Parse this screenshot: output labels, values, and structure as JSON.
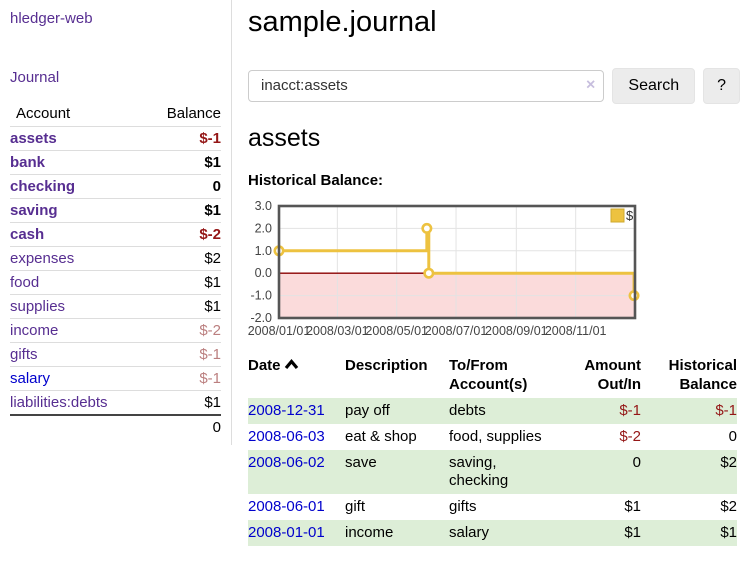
{
  "colors": {
    "accent_purple": "#572e91",
    "link_blue": "#0000cc",
    "negative_red": "#941616",
    "negative_muted": "#bb7f7f",
    "row_green": "#ddeed7",
    "series_yellow": "#edc240",
    "below_zero_pink": "#fbdbdb",
    "zero_line_red": "#8b0000"
  },
  "sidebar": {
    "brand": "hledger-web",
    "nav_journal": "Journal",
    "accounts_table": {
      "header": {
        "account": "Account",
        "balance": "Balance"
      },
      "rows": [
        {
          "name": "assets",
          "level": 1,
          "bold": true,
          "balance": "$-1",
          "balance_style": "negative"
        },
        {
          "name": "bank",
          "level": 2,
          "bold": true,
          "balance": "$1",
          "balance_style": "normal"
        },
        {
          "name": "checking",
          "level": 3,
          "bold": true,
          "balance": "0",
          "balance_style": "normal"
        },
        {
          "name": "saving",
          "level": 3,
          "bold": true,
          "balance": "$1",
          "balance_style": "normal"
        },
        {
          "name": "cash",
          "level": 2,
          "bold": true,
          "balance": "$-2",
          "balance_style": "negative"
        },
        {
          "name": "expenses",
          "level": 1,
          "bold": false,
          "balance": "$2",
          "balance_style": "normal"
        },
        {
          "name": "food",
          "level": 2,
          "bold": false,
          "balance": "$1",
          "balance_style": "normal"
        },
        {
          "name": "supplies",
          "level": 2,
          "bold": false,
          "balance": "$1",
          "balance_style": "normal"
        },
        {
          "name": "income",
          "level": 1,
          "bold": false,
          "balance": "$-2",
          "balance_style": "negative-muted"
        },
        {
          "name": "gifts",
          "level": 2,
          "bold": false,
          "balance": "$-1",
          "balance_style": "negative-muted"
        },
        {
          "name": "salary",
          "level": 2,
          "bold": false,
          "link_color": "blue",
          "balance": "$-1",
          "balance_style": "negative-muted"
        },
        {
          "name": "liabilities:debts",
          "level": 1,
          "bold": false,
          "balance": "$1",
          "balance_style": "normal"
        }
      ],
      "total": "0"
    }
  },
  "main": {
    "title": "sample.journal",
    "search": {
      "value": "inacct:assets",
      "clear_label": "×",
      "search_button": "Search",
      "help_button": "?"
    },
    "account_heading": "assets",
    "chart_title": "Historical Balance:"
  },
  "chart_data": {
    "type": "line",
    "step": true,
    "title": "Historical Balance",
    "series": [
      {
        "name": "$",
        "color": "#edc240",
        "points": [
          [
            "2008-01-01",
            1
          ],
          [
            "2008-06-01",
            2
          ],
          [
            "2008-06-03",
            0
          ],
          [
            "2008-12-31",
            -1
          ]
        ]
      }
    ],
    "xlim": [
      "2008-01-01",
      "2009-01-01"
    ],
    "ylim": [
      -2,
      3
    ],
    "yticks": [
      {
        "value": 3,
        "label": "3.0"
      },
      {
        "value": 2,
        "label": "2.0"
      },
      {
        "value": 1,
        "label": "1.0"
      },
      {
        "value": 0,
        "label": "0.0"
      },
      {
        "value": -1,
        "label": "-1.0"
      },
      {
        "value": -2,
        "label": "-2.0"
      }
    ],
    "xticks": [
      {
        "date": "2008-01-01",
        "label": "2008/01/01"
      },
      {
        "date": "2008-03-01",
        "label": "2008/03/01"
      },
      {
        "date": "2008-05-01",
        "label": "2008/05/01"
      },
      {
        "date": "2008-07-01",
        "label": "2008/07/01"
      },
      {
        "date": "2008-09-01",
        "label": "2008/09/01"
      },
      {
        "date": "2008-11-01",
        "label": "2008/11/01"
      }
    ],
    "legend": {
      "position": "top-right",
      "entries": [
        {
          "label": "$",
          "color": "#edc240"
        }
      ]
    },
    "grid": true,
    "negative_region_shaded": true
  },
  "register": {
    "headers": {
      "date": "Date",
      "description": "Description",
      "accounts": "To/From Account(s)",
      "amount": "Amount Out/In",
      "balance": "Historical Balance"
    },
    "sort": {
      "column": "date",
      "direction": "ascending"
    },
    "rows": [
      {
        "date": "2008-12-31",
        "description": "pay off",
        "accounts": "debts",
        "amount": "$-1",
        "amount_negative": true,
        "balance": "$-1",
        "balance_negative": true
      },
      {
        "date": "2008-06-03",
        "description": "eat & shop",
        "accounts": "food, supplies",
        "amount": "$-2",
        "amount_negative": true,
        "balance": "0",
        "balance_negative": false
      },
      {
        "date": "2008-06-02",
        "description": "save",
        "accounts": "saving, checking",
        "amount": "0",
        "amount_negative": false,
        "balance": "$2",
        "balance_negative": false
      },
      {
        "date": "2008-06-01",
        "description": "gift",
        "accounts": "gifts",
        "amount": "$1",
        "amount_negative": false,
        "balance": "$2",
        "balance_negative": false
      },
      {
        "date": "2008-01-01",
        "description": "income",
        "accounts": "salary",
        "amount": "$1",
        "amount_negative": false,
        "balance": "$1",
        "balance_negative": false
      }
    ]
  }
}
